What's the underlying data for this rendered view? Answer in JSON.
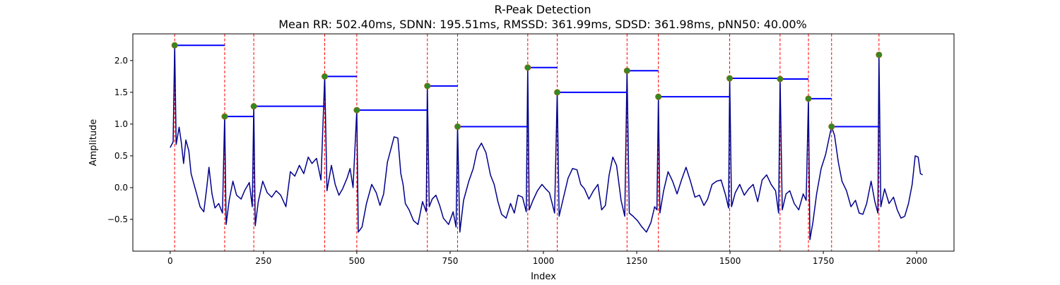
{
  "chart_data": {
    "type": "line",
    "title": "R-Peak Detection",
    "subtitle": "Mean RR: 502.40ms, SDNN: 195.51ms, RMSSD: 361.99ms, SDSD: 361.98ms, pNN50: 40.00%",
    "xlabel": "Index",
    "ylabel": "Amplitude",
    "xlim": [
      -100,
      2100
    ],
    "ylim": [
      -1.0,
      2.42
    ],
    "x_ticks": [
      0,
      250,
      500,
      750,
      1000,
      1250,
      1500,
      1750,
      2000
    ],
    "x_tick_labels": [
      "0",
      "250",
      "500",
      "750",
      "1000",
      "1250",
      "1500",
      "1750",
      "2000"
    ],
    "y_ticks": [
      -0.5,
      0.0,
      0.5,
      1.0,
      1.5,
      2.0
    ],
    "y_tick_labels": [
      "−0.5",
      "0.0",
      "0.5",
      "1.0",
      "1.5",
      "2.0"
    ],
    "grid": false,
    "colors": {
      "signal": "#00008b",
      "peak_line": "#ff0000",
      "peak_marker_fill": "#2e8b22",
      "peak_marker_edge": "#8b6914",
      "rr_interval": "#0000ff"
    },
    "signal_keypoints": [
      [
        0,
        0.63
      ],
      [
        8,
        0.72
      ],
      [
        12,
        2.24
      ],
      [
        16,
        0.68
      ],
      [
        24,
        0.95
      ],
      [
        30,
        0.7
      ],
      [
        36,
        0.38
      ],
      [
        42,
        0.75
      ],
      [
        50,
        0.58
      ],
      [
        56,
        0.22
      ],
      [
        64,
        0.05
      ],
      [
        72,
        -0.12
      ],
      [
        80,
        -0.3
      ],
      [
        90,
        -0.38
      ],
      [
        98,
        0.0
      ],
      [
        104,
        0.32
      ],
      [
        112,
        -0.1
      ],
      [
        120,
        -0.32
      ],
      [
        130,
        -0.25
      ],
      [
        140,
        -0.4
      ],
      [
        146,
        1.12
      ],
      [
        150,
        -0.58
      ],
      [
        158,
        -0.2
      ],
      [
        168,
        0.1
      ],
      [
        178,
        -0.12
      ],
      [
        190,
        -0.18
      ],
      [
        200,
        -0.04
      ],
      [
        212,
        0.08
      ],
      [
        220,
        -0.3
      ],
      [
        224,
        1.28
      ],
      [
        228,
        -0.6
      ],
      [
        236,
        -0.22
      ],
      [
        248,
        0.1
      ],
      [
        260,
        -0.08
      ],
      [
        272,
        -0.15
      ],
      [
        284,
        -0.05
      ],
      [
        296,
        -0.12
      ],
      [
        310,
        -0.3
      ],
      [
        322,
        0.25
      ],
      [
        334,
        0.18
      ],
      [
        346,
        0.35
      ],
      [
        358,
        0.22
      ],
      [
        370,
        0.48
      ],
      [
        380,
        0.38
      ],
      [
        392,
        0.46
      ],
      [
        404,
        0.12
      ],
      [
        414,
        1.75
      ],
      [
        420,
        -0.05
      ],
      [
        432,
        0.35
      ],
      [
        442,
        0.05
      ],
      [
        452,
        -0.12
      ],
      [
        462,
        -0.02
      ],
      [
        474,
        0.15
      ],
      [
        482,
        0.3
      ],
      [
        490,
        0.0
      ],
      [
        500,
        1.22
      ],
      [
        504,
        -0.7
      ],
      [
        514,
        -0.62
      ],
      [
        526,
        -0.25
      ],
      [
        540,
        0.05
      ],
      [
        552,
        -0.08
      ],
      [
        562,
        -0.28
      ],
      [
        572,
        -0.1
      ],
      [
        582,
        0.4
      ],
      [
        592,
        0.62
      ],
      [
        600,
        0.8
      ],
      [
        610,
        0.78
      ],
      [
        618,
        0.22
      ],
      [
        624,
        0.05
      ],
      [
        630,
        -0.25
      ],
      [
        640,
        -0.35
      ],
      [
        652,
        -0.52
      ],
      [
        664,
        -0.58
      ],
      [
        676,
        -0.22
      ],
      [
        686,
        -0.38
      ],
      [
        689,
        1.6
      ],
      [
        694,
        -0.3
      ],
      [
        702,
        -0.18
      ],
      [
        712,
        -0.12
      ],
      [
        722,
        -0.28
      ],
      [
        732,
        -0.48
      ],
      [
        746,
        -0.58
      ],
      [
        758,
        -0.38
      ],
      [
        766,
        -0.62
      ],
      [
        770,
        0.96
      ],
      [
        776,
        -0.7
      ],
      [
        786,
        -0.2
      ],
      [
        800,
        0.1
      ],
      [
        812,
        0.3
      ],
      [
        822,
        0.58
      ],
      [
        834,
        0.7
      ],
      [
        846,
        0.55
      ],
      [
        858,
        0.2
      ],
      [
        868,
        0.05
      ],
      [
        878,
        -0.22
      ],
      [
        888,
        -0.42
      ],
      [
        900,
        -0.48
      ],
      [
        912,
        -0.25
      ],
      [
        922,
        -0.4
      ],
      [
        932,
        -0.12
      ],
      [
        944,
        -0.15
      ],
      [
        954,
        -0.38
      ],
      [
        958,
        1.89
      ],
      [
        962,
        -0.35
      ],
      [
        972,
        -0.2
      ],
      [
        984,
        -0.05
      ],
      [
        996,
        0.05
      ],
      [
        1006,
        -0.02
      ],
      [
        1016,
        -0.08
      ],
      [
        1030,
        -0.4
      ],
      [
        1037,
        1.5
      ],
      [
        1042,
        -0.45
      ],
      [
        1054,
        -0.15
      ],
      [
        1066,
        0.15
      ],
      [
        1078,
        0.3
      ],
      [
        1090,
        0.28
      ],
      [
        1100,
        0.05
      ],
      [
        1110,
        -0.02
      ],
      [
        1122,
        -0.18
      ],
      [
        1134,
        -0.05
      ],
      [
        1146,
        0.05
      ],
      [
        1156,
        -0.35
      ],
      [
        1166,
        -0.28
      ],
      [
        1176,
        0.2
      ],
      [
        1186,
        0.48
      ],
      [
        1196,
        0.35
      ],
      [
        1208,
        -0.2
      ],
      [
        1218,
        -0.45
      ],
      [
        1224,
        1.84
      ],
      [
        1230,
        -0.4
      ],
      [
        1240,
        -0.45
      ],
      [
        1252,
        -0.52
      ],
      [
        1264,
        -0.62
      ],
      [
        1276,
        -0.7
      ],
      [
        1288,
        -0.55
      ],
      [
        1298,
        -0.3
      ],
      [
        1304,
        -0.35
      ],
      [
        1308,
        1.43
      ],
      [
        1312,
        -0.4
      ],
      [
        1322,
        -0.05
      ],
      [
        1334,
        0.25
      ],
      [
        1346,
        0.1
      ],
      [
        1358,
        -0.1
      ],
      [
        1370,
        0.12
      ],
      [
        1382,
        0.32
      ],
      [
        1394,
        0.1
      ],
      [
        1406,
        -0.15
      ],
      [
        1418,
        -0.12
      ],
      [
        1430,
        -0.28
      ],
      [
        1440,
        -0.18
      ],
      [
        1452,
        0.05
      ],
      [
        1464,
        0.1
      ],
      [
        1476,
        0.12
      ],
      [
        1488,
        -0.12
      ],
      [
        1496,
        -0.32
      ],
      [
        1499,
        1.72
      ],
      [
        1504,
        -0.3
      ],
      [
        1514,
        -0.08
      ],
      [
        1526,
        0.05
      ],
      [
        1538,
        -0.12
      ],
      [
        1550,
        -0.02
      ],
      [
        1562,
        0.05
      ],
      [
        1574,
        -0.22
      ],
      [
        1586,
        0.12
      ],
      [
        1598,
        0.2
      ],
      [
        1610,
        0.05
      ],
      [
        1622,
        -0.05
      ],
      [
        1630,
        -0.4
      ],
      [
        1634,
        1.71
      ],
      [
        1640,
        -0.35
      ],
      [
        1650,
        -0.1
      ],
      [
        1660,
        -0.05
      ],
      [
        1672,
        -0.25
      ],
      [
        1684,
        -0.35
      ],
      [
        1696,
        -0.1
      ],
      [
        1704,
        -0.2
      ],
      [
        1710,
        1.4
      ],
      [
        1714,
        -0.82
      ],
      [
        1722,
        -0.55
      ],
      [
        1732,
        -0.1
      ],
      [
        1744,
        0.3
      ],
      [
        1756,
        0.52
      ],
      [
        1766,
        0.8
      ],
      [
        1772,
        0.96
      ],
      [
        1780,
        0.82
      ],
      [
        1790,
        0.4
      ],
      [
        1800,
        0.1
      ],
      [
        1812,
        -0.05
      ],
      [
        1824,
        -0.3
      ],
      [
        1836,
        -0.2
      ],
      [
        1846,
        -0.4
      ],
      [
        1856,
        -0.42
      ],
      [
        1866,
        -0.25
      ],
      [
        1878,
        0.1
      ],
      [
        1888,
        -0.22
      ],
      [
        1896,
        -0.4
      ],
      [
        1899,
        2.09
      ],
      [
        1904,
        -0.3
      ],
      [
        1914,
        -0.02
      ],
      [
        1926,
        -0.25
      ],
      [
        1938,
        -0.15
      ],
      [
        1948,
        -0.35
      ],
      [
        1958,
        -0.48
      ],
      [
        1968,
        -0.45
      ],
      [
        1978,
        -0.25
      ],
      [
        1988,
        0.05
      ],
      [
        1996,
        0.5
      ],
      [
        2004,
        0.48
      ],
      [
        2010,
        0.22
      ],
      [
        2016,
        0.2
      ]
    ],
    "r_peaks": [
      {
        "x": 12,
        "y": 2.24
      },
      {
        "x": 146,
        "y": 1.12
      },
      {
        "x": 224,
        "y": 1.28
      },
      {
        "x": 414,
        "y": 1.75
      },
      {
        "x": 500,
        "y": 1.22
      },
      {
        "x": 689,
        "y": 1.6
      },
      {
        "x": 770,
        "y": 0.96
      },
      {
        "x": 958,
        "y": 1.89
      },
      {
        "x": 1037,
        "y": 1.5
      },
      {
        "x": 1224,
        "y": 1.84
      },
      {
        "x": 1308,
        "y": 1.43
      },
      {
        "x": 1499,
        "y": 1.72
      },
      {
        "x": 1634,
        "y": 1.71
      },
      {
        "x": 1710,
        "y": 1.4
      },
      {
        "x": 1772,
        "y": 0.96
      },
      {
        "x": 1899,
        "y": 2.09
      }
    ],
    "rr_intervals": [
      {
        "x_start": 12,
        "x_end": 146,
        "y": 2.24
      },
      {
        "x_start": 146,
        "x_end": 224,
        "y": 1.12
      },
      {
        "x_start": 224,
        "x_end": 414,
        "y": 1.28
      },
      {
        "x_start": 414,
        "x_end": 500,
        "y": 1.75
      },
      {
        "x_start": 500,
        "x_end": 689,
        "y": 1.22
      },
      {
        "x_start": 689,
        "x_end": 770,
        "y": 1.6
      },
      {
        "x_start": 770,
        "x_end": 958,
        "y": 0.96
      },
      {
        "x_start": 958,
        "x_end": 1037,
        "y": 1.89
      },
      {
        "x_start": 1037,
        "x_end": 1224,
        "y": 1.5
      },
      {
        "x_start": 1224,
        "x_end": 1308,
        "y": 1.84
      },
      {
        "x_start": 1308,
        "x_end": 1499,
        "y": 1.43
      },
      {
        "x_start": 1499,
        "x_end": 1634,
        "y": 1.72
      },
      {
        "x_start": 1634,
        "x_end": 1710,
        "y": 1.71
      },
      {
        "x_start": 1710,
        "x_end": 1772,
        "y": 1.4
      },
      {
        "x_start": 1772,
        "x_end": 1899,
        "y": 0.96
      }
    ]
  }
}
